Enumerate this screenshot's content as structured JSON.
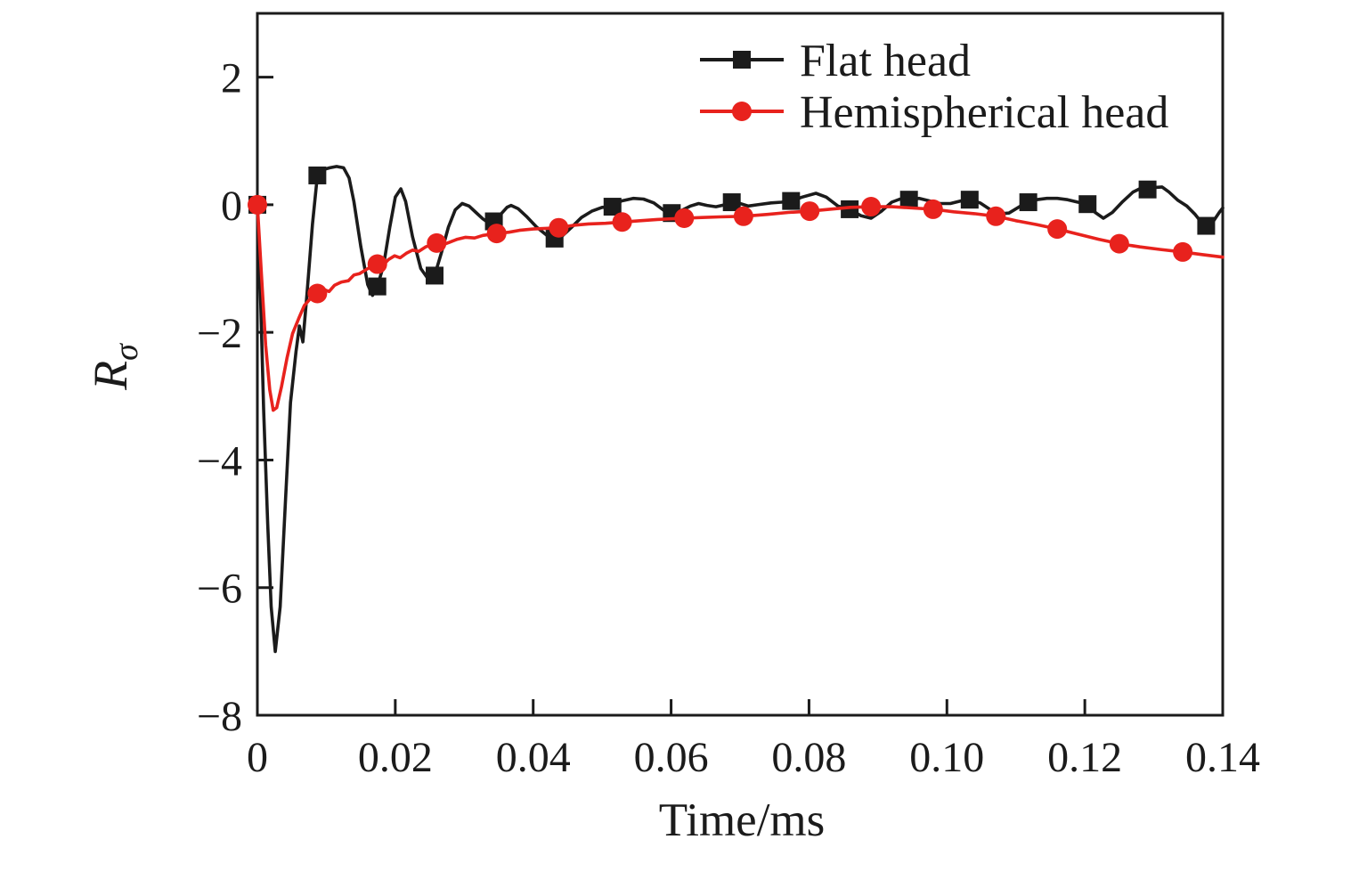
{
  "figure": {
    "background": "#ffffff",
    "ink_color": "#1b1b1b",
    "xlabel": "Time/ms",
    "ylabel_main": "R",
    "ylabel_sub": "σ"
  },
  "chart_data": {
    "type": "line",
    "title": "",
    "xlabel": "Time/ms",
    "ylabel": "R_sigma",
    "xlim": [
      0,
      0.14
    ],
    "ylim": [
      -8,
      3
    ],
    "grid": false,
    "legend_position": "top-center-inside",
    "xticks": {
      "values": [
        0,
        0.02,
        0.04,
        0.06,
        0.08,
        0.1,
        0.12,
        0.14
      ],
      "labels": [
        "0",
        "0.02",
        "0.04",
        "0.06",
        "0.08",
        "0.10",
        "0.12",
        "0.14"
      ]
    },
    "yticks": {
      "values": [
        2,
        0,
        -2,
        -4,
        -6,
        -8
      ],
      "labels": [
        "2",
        "0",
        "−2",
        "−4",
        "−6",
        "−8"
      ]
    },
    "series": [
      {
        "name": "Flat head",
        "color": "#1b1b1b",
        "marker": "square",
        "line": [
          [
            0,
            0
          ],
          [
            0.0004,
            -1.2
          ],
          [
            0.0009,
            -3.2
          ],
          [
            0.0015,
            -5.0
          ],
          [
            0.002,
            -6.3
          ],
          [
            0.0026,
            -7.0
          ],
          [
            0.0033,
            -6.3
          ],
          [
            0.0041,
            -4.6
          ],
          [
            0.0048,
            -3.1
          ],
          [
            0.0056,
            -2.3
          ],
          [
            0.0061,
            -1.9
          ],
          [
            0.0066,
            -2.15
          ],
          [
            0.0072,
            -1.4
          ],
          [
            0.008,
            -0.3
          ],
          [
            0.0087,
            0.46
          ],
          [
            0.0095,
            0.55
          ],
          [
            0.0105,
            0.58
          ],
          [
            0.0115,
            0.6
          ],
          [
            0.0125,
            0.58
          ],
          [
            0.0133,
            0.42
          ],
          [
            0.014,
            0.05
          ],
          [
            0.015,
            -0.65
          ],
          [
            0.016,
            -1.25
          ],
          [
            0.0167,
            -1.42
          ],
          [
            0.0174,
            -1.28
          ],
          [
            0.0183,
            -0.95
          ],
          [
            0.0192,
            -0.35
          ],
          [
            0.02,
            0.12
          ],
          [
            0.0208,
            0.25
          ],
          [
            0.0215,
            0.05
          ],
          [
            0.0225,
            -0.5
          ],
          [
            0.0237,
            -1.0
          ],
          [
            0.0247,
            -1.15
          ],
          [
            0.0257,
            -1.11
          ],
          [
            0.0267,
            -0.75
          ],
          [
            0.0277,
            -0.35
          ],
          [
            0.0287,
            -0.08
          ],
          [
            0.0297,
            0.02
          ],
          [
            0.0307,
            -0.02
          ],
          [
            0.0317,
            -0.12
          ],
          [
            0.0327,
            -0.22
          ],
          [
            0.0335,
            -0.28
          ],
          [
            0.0343,
            -0.26
          ],
          [
            0.0352,
            -0.16
          ],
          [
            0.0362,
            -0.04
          ],
          [
            0.0368,
            -0.01
          ],
          [
            0.0378,
            -0.06
          ],
          [
            0.039,
            -0.18
          ],
          [
            0.0405,
            -0.35
          ],
          [
            0.042,
            -0.48
          ],
          [
            0.0431,
            -0.53
          ],
          [
            0.0442,
            -0.49
          ],
          [
            0.0455,
            -0.36
          ],
          [
            0.047,
            -0.2
          ],
          [
            0.0485,
            -0.1
          ],
          [
            0.05,
            -0.04
          ],
          [
            0.0515,
            -0.03
          ],
          [
            0.0528,
            0.06
          ],
          [
            0.0545,
            0.1
          ],
          [
            0.056,
            0.09
          ],
          [
            0.0575,
            0.03
          ],
          [
            0.059,
            -0.09
          ],
          [
            0.0601,
            -0.13
          ],
          [
            0.0615,
            -0.09
          ],
          [
            0.0628,
            -0.02
          ],
          [
            0.064,
            0.02
          ],
          [
            0.0652,
            -0.01
          ],
          [
            0.0665,
            -0.03
          ],
          [
            0.0678,
            0.0
          ],
          [
            0.0688,
            0.04
          ],
          [
            0.07,
            0.02
          ],
          [
            0.0712,
            -0.02
          ],
          [
            0.0725,
            0.0
          ],
          [
            0.0745,
            0.03
          ],
          [
            0.076,
            0.04
          ],
          [
            0.0774,
            0.06
          ],
          [
            0.079,
            0.12
          ],
          [
            0.081,
            0.18
          ],
          [
            0.0825,
            0.12
          ],
          [
            0.0842,
            -0.02
          ],
          [
            0.0859,
            -0.07
          ],
          [
            0.0875,
            -0.17
          ],
          [
            0.089,
            -0.21
          ],
          [
            0.0905,
            -0.1
          ],
          [
            0.092,
            0.04
          ],
          [
            0.0932,
            0.09
          ],
          [
            0.0945,
            0.08
          ],
          [
            0.096,
            0.1
          ],
          [
            0.0975,
            0.06
          ],
          [
            0.099,
            0.02
          ],
          [
            0.1005,
            0.02
          ],
          [
            0.102,
            0.06
          ],
          [
            0.1033,
            0.08
          ],
          [
            0.1048,
            0.03
          ],
          [
            0.1062,
            -0.07
          ],
          [
            0.1078,
            -0.14
          ],
          [
            0.109,
            -0.13
          ],
          [
            0.1105,
            -0.03
          ],
          [
            0.1118,
            0.04
          ],
          [
            0.113,
            0.08
          ],
          [
            0.1145,
            0.1
          ],
          [
            0.116,
            0.1
          ],
          [
            0.1175,
            0.08
          ],
          [
            0.119,
            0.04
          ],
          [
            0.1204,
            0.01
          ],
          [
            0.1215,
            -0.12
          ],
          [
            0.1227,
            -0.21
          ],
          [
            0.124,
            -0.12
          ],
          [
            0.1255,
            0.05
          ],
          [
            0.127,
            0.2
          ],
          [
            0.1283,
            0.27
          ],
          [
            0.1291,
            0.24
          ],
          [
            0.13,
            0.27
          ],
          [
            0.1312,
            0.28
          ],
          [
            0.1322,
            0.2
          ],
          [
            0.1335,
            0.07
          ],
          [
            0.1348,
            -0.02
          ],
          [
            0.136,
            -0.15
          ],
          [
            0.1371,
            -0.3
          ],
          [
            0.1376,
            -0.33
          ],
          [
            0.1385,
            -0.28
          ],
          [
            0.1395,
            -0.12
          ],
          [
            0.14,
            -0.05
          ]
        ],
        "markers": [
          [
            0,
            0
          ],
          [
            0.0087,
            0.46
          ],
          [
            0.0174,
            -1.28
          ],
          [
            0.0257,
            -1.11
          ],
          [
            0.0343,
            -0.26
          ],
          [
            0.0431,
            -0.53
          ],
          [
            0.0515,
            -0.03
          ],
          [
            0.0601,
            -0.13
          ],
          [
            0.0688,
            0.04
          ],
          [
            0.0774,
            0.06
          ],
          [
            0.0859,
            -0.07
          ],
          [
            0.0945,
            0.08
          ],
          [
            0.1033,
            0.08
          ],
          [
            0.1118,
            0.04
          ],
          [
            0.1204,
            0.01
          ],
          [
            0.1291,
            0.24
          ],
          [
            0.1376,
            -0.33
          ]
        ]
      },
      {
        "name": "Hemispherical head",
        "color": "#e8221d",
        "marker": "circle",
        "line": [
          [
            0,
            0
          ],
          [
            0.0006,
            -1.1
          ],
          [
            0.0012,
            -2.2
          ],
          [
            0.0018,
            -2.9
          ],
          [
            0.0023,
            -3.22
          ],
          [
            0.0028,
            -3.18
          ],
          [
            0.0035,
            -2.85
          ],
          [
            0.0043,
            -2.4
          ],
          [
            0.0051,
            -2.02
          ],
          [
            0.006,
            -1.78
          ],
          [
            0.0068,
            -1.58
          ],
          [
            0.0077,
            -1.47
          ],
          [
            0.0087,
            -1.39
          ],
          [
            0.0097,
            -1.33
          ],
          [
            0.0104,
            -1.36
          ],
          [
            0.0112,
            -1.26
          ],
          [
            0.0122,
            -1.21
          ],
          [
            0.0132,
            -1.19
          ],
          [
            0.014,
            -1.1
          ],
          [
            0.0148,
            -1.08
          ],
          [
            0.0157,
            -1.02
          ],
          [
            0.0165,
            -0.97
          ],
          [
            0.0174,
            -0.93
          ],
          [
            0.0181,
            -0.96
          ],
          [
            0.019,
            -0.86
          ],
          [
            0.0199,
            -0.8
          ],
          [
            0.0207,
            -0.83
          ],
          [
            0.0216,
            -0.76
          ],
          [
            0.0225,
            -0.71
          ],
          [
            0.0234,
            -0.73
          ],
          [
            0.0244,
            -0.66
          ],
          [
            0.026,
            -0.6
          ],
          [
            0.0268,
            -0.63
          ],
          [
            0.0278,
            -0.59
          ],
          [
            0.029,
            -0.54
          ],
          [
            0.0302,
            -0.51
          ],
          [
            0.0315,
            -0.52
          ],
          [
            0.0327,
            -0.48
          ],
          [
            0.0347,
            -0.45
          ],
          [
            0.0365,
            -0.43
          ],
          [
            0.038,
            -0.4
          ],
          [
            0.04,
            -0.38
          ],
          [
            0.0418,
            -0.37
          ],
          [
            0.0437,
            -0.36
          ],
          [
            0.046,
            -0.32
          ],
          [
            0.048,
            -0.3
          ],
          [
            0.0505,
            -0.29
          ],
          [
            0.0529,
            -0.27
          ],
          [
            0.0555,
            -0.25
          ],
          [
            0.058,
            -0.23
          ],
          [
            0.06,
            -0.22
          ],
          [
            0.0619,
            -0.21
          ],
          [
            0.0645,
            -0.2
          ],
          [
            0.067,
            -0.19
          ],
          [
            0.0705,
            -0.18
          ],
          [
            0.074,
            -0.15
          ],
          [
            0.077,
            -0.12
          ],
          [
            0.0801,
            -0.1
          ],
          [
            0.083,
            -0.07
          ],
          [
            0.086,
            -0.04
          ],
          [
            0.089,
            -0.03
          ],
          [
            0.092,
            -0.03
          ],
          [
            0.095,
            -0.05
          ],
          [
            0.098,
            -0.07
          ],
          [
            0.101,
            -0.11
          ],
          [
            0.104,
            -0.14
          ],
          [
            0.1071,
            -0.18
          ],
          [
            0.11,
            -0.25
          ],
          [
            0.113,
            -0.31
          ],
          [
            0.116,
            -0.38
          ],
          [
            0.119,
            -0.46
          ],
          [
            0.122,
            -0.54
          ],
          [
            0.125,
            -0.61
          ],
          [
            0.128,
            -0.66
          ],
          [
            0.131,
            -0.7
          ],
          [
            0.1342,
            -0.74
          ],
          [
            0.137,
            -0.78
          ],
          [
            0.14,
            -0.82
          ]
        ],
        "markers": [
          [
            0,
            0
          ],
          [
            0.0087,
            -1.39
          ],
          [
            0.0174,
            -0.93
          ],
          [
            0.026,
            -0.6
          ],
          [
            0.0347,
            -0.45
          ],
          [
            0.0437,
            -0.36
          ],
          [
            0.0529,
            -0.27
          ],
          [
            0.0619,
            -0.21
          ],
          [
            0.0705,
            -0.18
          ],
          [
            0.0801,
            -0.1
          ],
          [
            0.089,
            -0.03
          ],
          [
            0.098,
            -0.07
          ],
          [
            0.1071,
            -0.18
          ],
          [
            0.116,
            -0.38
          ],
          [
            0.125,
            -0.61
          ],
          [
            0.1342,
            -0.74
          ]
        ]
      }
    ]
  }
}
